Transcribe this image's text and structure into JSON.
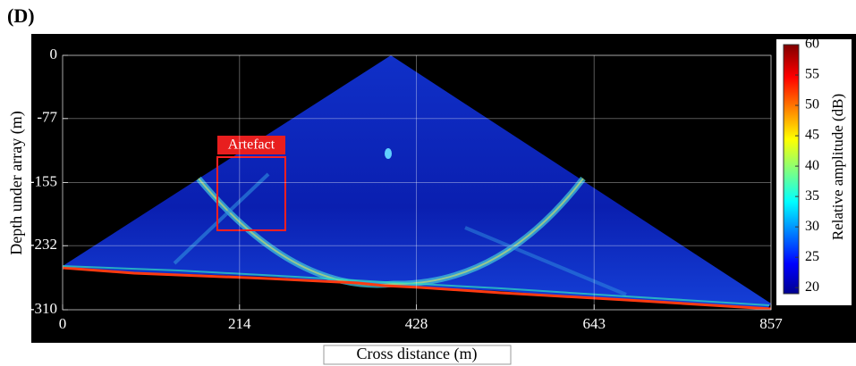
{
  "chart_data": {
    "type": "heatmap",
    "panel": "(D)",
    "xlabel": "Cross distance (m)",
    "ylabel": "Depth under array (m)",
    "xlim": [
      0,
      857
    ],
    "xticks": [
      0,
      214,
      428,
      643,
      857
    ],
    "ylim": [
      -310,
      0
    ],
    "yticks": [
      0,
      -77,
      -155,
      -232,
      -310
    ],
    "grid": true,
    "annotation": "Artefact",
    "colorbar": {
      "label": "Relative amplitude (dB)",
      "lim": [
        19,
        60
      ],
      "ticks": [
        20,
        25,
        30,
        35,
        40,
        45,
        50,
        55,
        60
      ]
    }
  }
}
